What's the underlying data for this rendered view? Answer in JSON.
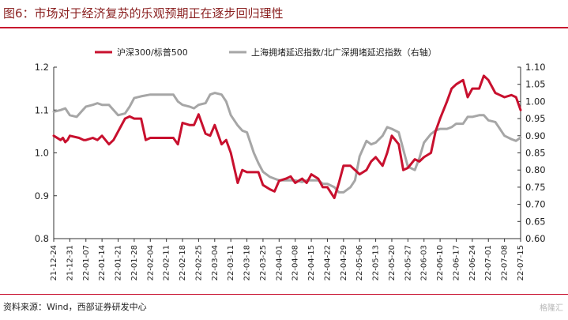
{
  "title": "图6：市场对于经济复苏的乐观预期正在逐步回归理性",
  "source": "资料来源：Wind，西部证券研发中心",
  "watermark": "格隆汇",
  "chart_data": {
    "type": "line",
    "title": "图6：市场对于经济复苏的乐观预期正在逐步回归理性",
    "x_tick_labels": [
      "21-12-24",
      "21-12-31",
      "22-01-07",
      "22-01-14",
      "22-01-21",
      "22-01-28",
      "22-02-04",
      "22-02-11",
      "22-02-18",
      "22-02-25",
      "22-03-04",
      "22-03-11",
      "22-03-18",
      "22-03-25",
      "22-04-01",
      "22-04-08",
      "22-04-15",
      "22-04-22",
      "22-04-29",
      "22-05-06",
      "22-05-13",
      "22-05-20",
      "22-05-27",
      "22-06-03",
      "22-06-10",
      "22-06-17",
      "22-06-24",
      "22-07-01",
      "22-07-08",
      "22-07-15"
    ],
    "y_left_ticks": [
      "0.8",
      "0.9",
      "1.0",
      "1.1",
      "1.2"
    ],
    "y_left_lim": [
      0.8,
      1.2
    ],
    "y_right_ticks": [
      "0.60",
      "0.65",
      "0.70",
      "0.75",
      "0.80",
      "0.85",
      "0.90",
      "0.95",
      "1.00",
      "1.05",
      "1.10"
    ],
    "y_right_lim": [
      0.6,
      1.1
    ],
    "legend_position": "top",
    "grid": false,
    "series": [
      {
        "name": "沪深300/标普500",
        "axis": "left",
        "color": "#c8102e",
        "points": [
          [
            "21-12-24",
            1.04
          ],
          [
            "21-12-27",
            1.03
          ],
          [
            "21-12-28",
            1.035
          ],
          [
            "21-12-29",
            1.025
          ],
          [
            "21-12-30",
            1.03
          ],
          [
            "21-12-31",
            1.04
          ],
          [
            "22-01-04",
            1.035
          ],
          [
            "22-01-06",
            1.03
          ],
          [
            "22-01-07",
            1.03
          ],
          [
            "22-01-10",
            1.035
          ],
          [
            "22-01-12",
            1.03
          ],
          [
            "22-01-14",
            1.04
          ],
          [
            "22-01-17",
            1.02
          ],
          [
            "22-01-19",
            1.03
          ],
          [
            "22-01-21",
            1.05
          ],
          [
            "22-01-24",
            1.08
          ],
          [
            "22-01-26",
            1.085
          ],
          [
            "22-01-28",
            1.08
          ],
          [
            "22-01-31",
            1.08
          ],
          [
            "22-02-02",
            1.03
          ],
          [
            "22-02-04",
            1.035
          ],
          [
            "22-02-07",
            1.035
          ],
          [
            "22-02-09",
            1.035
          ],
          [
            "22-02-11",
            1.035
          ],
          [
            "22-02-14",
            1.035
          ],
          [
            "22-02-16",
            1.02
          ],
          [
            "22-02-18",
            1.07
          ],
          [
            "22-02-21",
            1.065
          ],
          [
            "22-02-23",
            1.065
          ],
          [
            "22-02-25",
            1.09
          ],
          [
            "22-02-28",
            1.045
          ],
          [
            "22-03-02",
            1.04
          ],
          [
            "22-03-04",
            1.065
          ],
          [
            "22-03-07",
            1.02
          ],
          [
            "22-03-09",
            1.03
          ],
          [
            "22-03-11",
            1.0
          ],
          [
            "22-03-14",
            0.93
          ],
          [
            "22-03-16",
            0.96
          ],
          [
            "22-03-18",
            0.955
          ],
          [
            "22-03-21",
            0.955
          ],
          [
            "22-03-23",
            0.955
          ],
          [
            "22-03-25",
            0.925
          ],
          [
            "22-03-28",
            0.915
          ],
          [
            "22-03-30",
            0.91
          ],
          [
            "22-04-01",
            0.935
          ],
          [
            "22-04-04",
            0.94
          ],
          [
            "22-04-06",
            0.945
          ],
          [
            "22-04-08",
            0.93
          ],
          [
            "22-04-11",
            0.94
          ],
          [
            "22-04-13",
            0.93
          ],
          [
            "22-04-15",
            0.95
          ],
          [
            "22-04-18",
            0.94
          ],
          [
            "22-04-20",
            0.92
          ],
          [
            "22-04-22",
            0.92
          ],
          [
            "22-04-25",
            0.895
          ],
          [
            "22-04-27",
            0.93
          ],
          [
            "22-04-29",
            0.97
          ],
          [
            "22-05-02",
            0.97
          ],
          [
            "22-05-04",
            0.96
          ],
          [
            "22-05-06",
            0.95
          ],
          [
            "22-05-09",
            0.96
          ],
          [
            "22-05-11",
            0.98
          ],
          [
            "22-05-13",
            0.99
          ],
          [
            "22-05-16",
            0.97
          ],
          [
            "22-05-18",
            1.0
          ],
          [
            "22-05-20",
            1.04
          ],
          [
            "22-05-23",
            1.02
          ],
          [
            "22-05-25",
            0.96
          ],
          [
            "22-05-27",
            0.965
          ],
          [
            "22-05-30",
            0.985
          ],
          [
            "22-06-01",
            0.98
          ],
          [
            "22-06-03",
            0.99
          ],
          [
            "22-06-06",
            1.0
          ],
          [
            "22-06-08",
            1.05
          ],
          [
            "22-06-10",
            1.08
          ],
          [
            "22-06-13",
            1.12
          ],
          [
            "22-06-15",
            1.15
          ],
          [
            "22-06-17",
            1.16
          ],
          [
            "22-06-20",
            1.17
          ],
          [
            "22-06-22",
            1.13
          ],
          [
            "22-06-24",
            1.15
          ],
          [
            "22-06-27",
            1.15
          ],
          [
            "22-06-29",
            1.18
          ],
          [
            "22-07-01",
            1.17
          ],
          [
            "22-07-04",
            1.14
          ],
          [
            "22-07-06",
            1.135
          ],
          [
            "22-07-08",
            1.13
          ],
          [
            "22-07-11",
            1.135
          ],
          [
            "22-07-13",
            1.13
          ],
          [
            "22-07-15",
            1.1
          ]
        ]
      },
      {
        "name": "上海拥堵延迟指数/北广深拥堵延迟指数（右轴）",
        "axis": "right",
        "color": "#a6a6a6",
        "points": [
          [
            "21-12-24",
            0.97
          ],
          [
            "21-12-27",
            0.975
          ],
          [
            "21-12-29",
            0.98
          ],
          [
            "21-12-31",
            0.96
          ],
          [
            "22-01-03",
            0.955
          ],
          [
            "22-01-05",
            0.97
          ],
          [
            "22-01-07",
            0.985
          ],
          [
            "22-01-10",
            0.99
          ],
          [
            "22-01-12",
            0.995
          ],
          [
            "22-01-14",
            0.99
          ],
          [
            "22-01-17",
            0.99
          ],
          [
            "22-01-19",
            0.975
          ],
          [
            "22-01-21",
            0.96
          ],
          [
            "22-01-24",
            0.965
          ],
          [
            "22-01-26",
            0.985
          ],
          [
            "22-01-28",
            1.01
          ],
          [
            "22-01-31",
            1.015
          ],
          [
            "22-02-04",
            1.02
          ],
          [
            "22-02-08",
            1.02
          ],
          [
            "22-02-11",
            1.02
          ],
          [
            "22-02-14",
            1.02
          ],
          [
            "22-02-16",
            1.0
          ],
          [
            "22-02-18",
            0.99
          ],
          [
            "22-02-21",
            0.985
          ],
          [
            "22-02-23",
            0.98
          ],
          [
            "22-02-25",
            0.99
          ],
          [
            "22-02-28",
            0.995
          ],
          [
            "22-03-02",
            1.02
          ],
          [
            "22-03-04",
            1.025
          ],
          [
            "22-03-07",
            1.02
          ],
          [
            "22-03-09",
            1.0
          ],
          [
            "22-03-11",
            0.96
          ],
          [
            "22-03-14",
            0.93
          ],
          [
            "22-03-16",
            0.915
          ],
          [
            "22-03-18",
            0.91
          ],
          [
            "22-03-21",
            0.85
          ],
          [
            "22-03-23",
            0.82
          ],
          [
            "22-03-25",
            0.795
          ],
          [
            "22-03-28",
            0.78
          ],
          [
            "22-03-30",
            0.775
          ],
          [
            "22-04-01",
            0.77
          ],
          [
            "22-04-05",
            0.77
          ],
          [
            "22-04-08",
            0.77
          ],
          [
            "22-04-11",
            0.765
          ],
          [
            "22-04-13",
            0.77
          ],
          [
            "22-04-15",
            0.77
          ],
          [
            "22-04-18",
            0.77
          ],
          [
            "22-04-20",
            0.76
          ],
          [
            "22-04-22",
            0.76
          ],
          [
            "22-04-25",
            0.75
          ],
          [
            "22-04-27",
            0.735
          ],
          [
            "22-04-29",
            0.735
          ],
          [
            "22-05-02",
            0.75
          ],
          [
            "22-05-04",
            0.77
          ],
          [
            "22-05-06",
            0.84
          ],
          [
            "22-05-09",
            0.885
          ],
          [
            "22-05-11",
            0.875
          ],
          [
            "22-05-13",
            0.88
          ],
          [
            "22-05-16",
            0.9
          ],
          [
            "22-05-18",
            0.925
          ],
          [
            "22-05-20",
            0.92
          ],
          [
            "22-05-23",
            0.91
          ],
          [
            "22-05-25",
            0.86
          ],
          [
            "22-05-27",
            0.81
          ],
          [
            "22-05-30",
            0.8
          ],
          [
            "22-06-01",
            0.835
          ],
          [
            "22-06-03",
            0.88
          ],
          [
            "22-06-06",
            0.905
          ],
          [
            "22-06-08",
            0.915
          ],
          [
            "22-06-10",
            0.92
          ],
          [
            "22-06-13",
            0.92
          ],
          [
            "22-06-15",
            0.925
          ],
          [
            "22-06-17",
            0.935
          ],
          [
            "22-06-20",
            0.935
          ],
          [
            "22-06-22",
            0.955
          ],
          [
            "22-06-24",
            0.955
          ],
          [
            "22-06-27",
            0.96
          ],
          [
            "22-06-29",
            0.96
          ],
          [
            "22-07-01",
            0.945
          ],
          [
            "22-07-04",
            0.94
          ],
          [
            "22-07-06",
            0.92
          ],
          [
            "22-07-08",
            0.9
          ],
          [
            "22-07-11",
            0.89
          ],
          [
            "22-07-13",
            0.885
          ],
          [
            "22-07-15",
            0.895
          ]
        ]
      }
    ]
  }
}
